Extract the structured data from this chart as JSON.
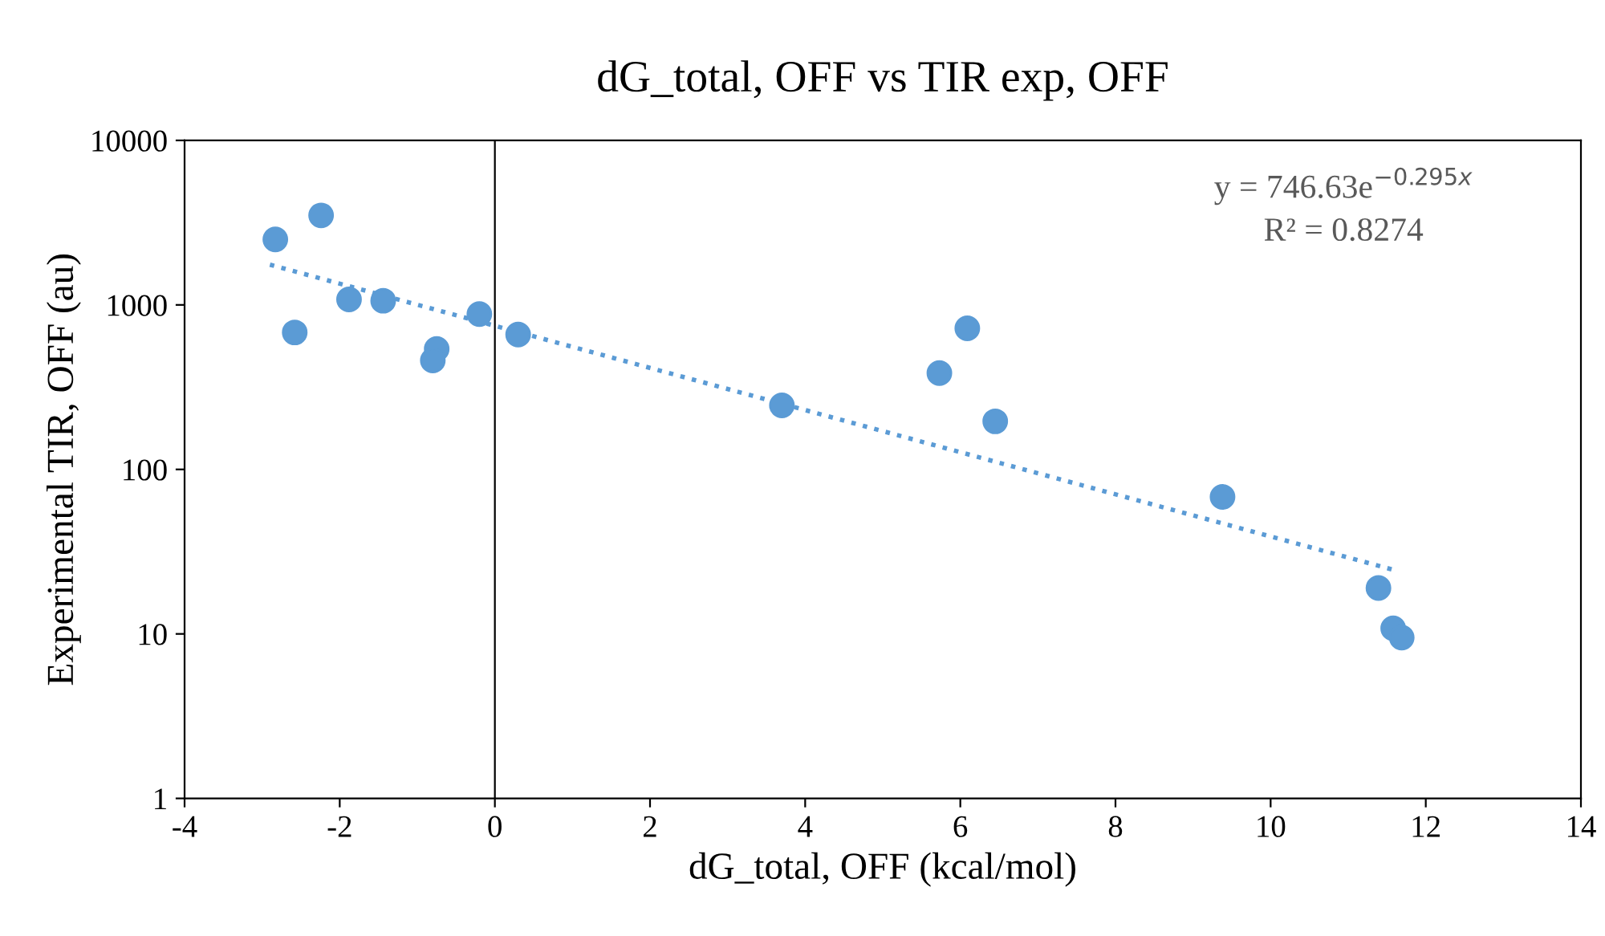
{
  "chart_data": {
    "type": "scatter",
    "title": "dG_total, OFF vs TIR exp, OFF",
    "xlabel": "dG_total, OFF (kcal/mol)",
    "ylabel": "Experimental TIR, OFF (au)",
    "xlim": [
      -4,
      14
    ],
    "xticks": [
      -4,
      -2,
      0,
      2,
      4,
      6,
      8,
      10,
      12,
      14
    ],
    "ylim": [
      1,
      10000
    ],
    "yticks": [
      1,
      10,
      100,
      1000,
      10000
    ],
    "log": true,
    "grid": false,
    "legend": false,
    "series": [
      {
        "color": "#5b9bd5",
        "marker": "circle",
        "x": [
          -2.83,
          -2.24,
          -2.58,
          -1.88,
          -1.44,
          -0.75,
          -0.8,
          -0.2,
          0.3,
          3.7,
          5.73,
          6.09,
          6.45,
          9.38,
          11.39,
          11.58,
          11.69
        ],
        "values": [
          2500,
          3500,
          680,
          1080,
          1060,
          540,
          460,
          880,
          660,
          245,
          385,
          720,
          196,
          68,
          19,
          10.8,
          9.5
        ]
      },
      {
        "type": "line",
        "color": "#5b9bd5",
        "line_style": "dotted",
        "marker": "none",
        "x": [
          -2.9,
          11.6
        ],
        "values": [
          1756,
          24.4
        ]
      }
    ],
    "ref_lines": [
      {
        "axis": "x",
        "value": 0,
        "color": "#000000",
        "line_style": "solid"
      }
    ],
    "annotations": [
      "y = 746.63e$^{−0.295x}$",
      "R² = 0.8274"
    ]
  }
}
